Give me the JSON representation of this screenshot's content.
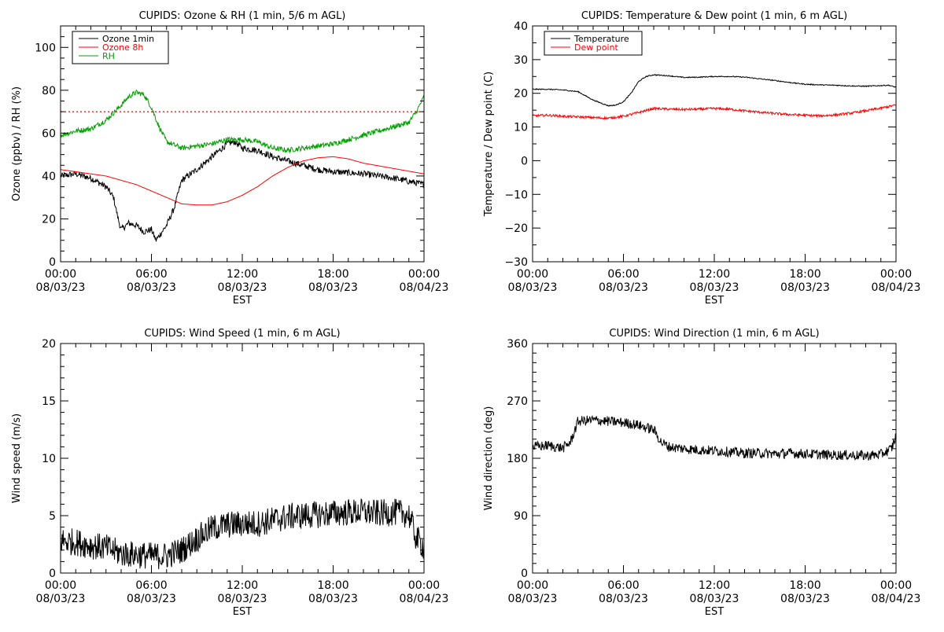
{
  "chart_data": [
    {
      "id": "ozone-rh",
      "type": "line",
      "title": "CUPIDS: Ozone & RH (1 min, 5/6 m AGL)",
      "xlabel": "EST",
      "ylabel": "Ozone (ppbv) / RH (%)",
      "xlim": [
        0,
        24
      ],
      "ylim": [
        0,
        110
      ],
      "x_ticks": [
        {
          "x": 0,
          "time": "00:00",
          "date": "08/03/23"
        },
        {
          "x": 6,
          "time": "06:00",
          "date": "08/03/23"
        },
        {
          "x": 12,
          "time": "12:00",
          "date": "08/03/23"
        },
        {
          "x": 18,
          "time": "18:00",
          "date": "08/03/23"
        },
        {
          "x": 24,
          "time": "00:00",
          "date": "08/04/23"
        }
      ],
      "y_ticks": [
        {
          "v": 0,
          "label": "0"
        },
        {
          "v": 20,
          "label": "20"
        },
        {
          "v": 40,
          "label": "40"
        },
        {
          "v": 60,
          "label": "60"
        },
        {
          "v": 80,
          "label": "80"
        },
        {
          "v": 100,
          "label": "100"
        }
      ],
      "y_minor": 5,
      "legend": "top-left",
      "reference_line": {
        "y": 70,
        "color": "#ff0000",
        "style": "dotted"
      },
      "series": [
        {
          "name": "Ozone 1min",
          "color": "#000000",
          "noise": 1.5,
          "x": [
            0,
            1,
            2,
            3,
            3.5,
            3.8,
            4,
            4.5,
            5,
            5.5,
            6,
            6.3,
            6.5,
            7,
            7.5,
            8,
            9,
            10,
            11,
            11.5,
            12,
            13,
            14,
            15,
            16,
            17,
            18,
            20,
            22,
            24
          ],
          "y": [
            40,
            41,
            39,
            35,
            30,
            20,
            15,
            18,
            17,
            14,
            15,
            10,
            12,
            17,
            25,
            38,
            43,
            49,
            55,
            56,
            53,
            52,
            49,
            47,
            45,
            43,
            42,
            41,
            39,
            36
          ]
        },
        {
          "name": "Ozone 8h",
          "color": "#ff0000",
          "noise": 0,
          "x": [
            0,
            2,
            3,
            4,
            5,
            6,
            7,
            8,
            9,
            10,
            11,
            12,
            13,
            14,
            15,
            16,
            17,
            18,
            19,
            20,
            22,
            24
          ],
          "y": [
            43,
            41,
            40,
            38,
            36,
            33,
            30,
            27,
            26.5,
            26.5,
            28,
            31,
            35,
            40,
            44,
            47,
            48.5,
            49,
            48,
            46,
            43.5,
            41
          ]
        },
        {
          "name": "RH",
          "color": "#00a000",
          "noise": 1.2,
          "x": [
            0,
            1,
            2,
            3,
            4,
            4.5,
            5,
            5.5,
            6,
            6.5,
            7,
            8,
            9,
            10,
            11,
            12,
            13,
            14,
            15,
            16,
            17,
            18,
            19,
            20,
            21,
            22,
            23,
            23.5,
            24
          ],
          "y": [
            59,
            61,
            62,
            66,
            73,
            77,
            79,
            78,
            72,
            63,
            56,
            53,
            54,
            55,
            57,
            57,
            56,
            53,
            52,
            53,
            54,
            55,
            57,
            59,
            61,
            63,
            65,
            70,
            77
          ]
        }
      ]
    },
    {
      "id": "temp-dew",
      "type": "line",
      "title": "CUPIDS: Temperature & Dew point (1 min, 6 m AGL)",
      "xlabel": "EST",
      "ylabel": "Temperature / Dew point (C)",
      "xlim": [
        0,
        24
      ],
      "ylim": [
        -30,
        40
      ],
      "x_ticks": [
        {
          "x": 0,
          "time": "00:00",
          "date": "08/03/23"
        },
        {
          "x": 6,
          "time": "06:00",
          "date": "08/03/23"
        },
        {
          "x": 12,
          "time": "12:00",
          "date": "08/03/23"
        },
        {
          "x": 18,
          "time": "18:00",
          "date": "08/03/23"
        },
        {
          "x": 24,
          "time": "00:00",
          "date": "08/04/23"
        }
      ],
      "y_ticks": [
        {
          "v": -30,
          "label": "−30"
        },
        {
          "v": -20,
          "label": "−20"
        },
        {
          "v": -10,
          "label": "−10"
        },
        {
          "v": 0,
          "label": "0"
        },
        {
          "v": 10,
          "label": "10"
        },
        {
          "v": 20,
          "label": "20"
        },
        {
          "v": 30,
          "label": "30"
        },
        {
          "v": 40,
          "label": "40"
        }
      ],
      "y_minor": 5,
      "legend": "top-left",
      "series": [
        {
          "name": "Temperature",
          "color": "#000000",
          "noise": 0.15,
          "x": [
            0,
            1,
            2,
            3,
            4,
            5,
            5.5,
            6,
            6.5,
            7,
            7.5,
            8,
            9,
            10,
            11,
            12,
            13,
            14,
            15,
            16,
            17,
            18,
            19,
            20,
            21,
            22,
            23,
            23.5,
            24
          ],
          "y": [
            21.2,
            21.2,
            21,
            20.5,
            18,
            16.3,
            16.5,
            17.5,
            20,
            23.5,
            25,
            25.5,
            25.2,
            24.7,
            24.8,
            25,
            25,
            24.8,
            24.3,
            23.8,
            23.2,
            22.7,
            22.5,
            22.4,
            22.2,
            22.1,
            22.3,
            22.4,
            21.8
          ]
        },
        {
          "name": "Dew point",
          "color": "#ff0000",
          "noise": 0.35,
          "x": [
            0,
            1,
            2,
            3,
            4,
            5,
            6,
            7,
            8,
            9,
            10,
            11,
            12,
            13,
            14,
            15,
            16,
            17,
            18,
            19,
            20,
            21,
            22,
            23,
            24
          ],
          "y": [
            13.3,
            13.5,
            13.2,
            13,
            12.8,
            12.6,
            13.2,
            14.3,
            15.5,
            15.3,
            15.2,
            15.3,
            15.5,
            15.3,
            14.8,
            14.4,
            14,
            13.7,
            13.5,
            13.3,
            13.6,
            14.1,
            14.8,
            15.6,
            16.5
          ]
        }
      ]
    },
    {
      "id": "wind-speed",
      "type": "line",
      "title": "CUPIDS: Wind Speed (1 min, 6 m AGL)",
      "xlabel": "EST",
      "ylabel": "Wind speed (m/s)",
      "xlim": [
        0,
        24
      ],
      "ylim": [
        0,
        20
      ],
      "x_ticks": [
        {
          "x": 0,
          "time": "00:00",
          "date": "08/03/23"
        },
        {
          "x": 6,
          "time": "06:00",
          "date": "08/03/23"
        },
        {
          "x": 12,
          "time": "12:00",
          "date": "08/03/23"
        },
        {
          "x": 18,
          "time": "18:00",
          "date": "08/03/23"
        },
        {
          "x": 24,
          "time": "00:00",
          "date": "08/04/23"
        }
      ],
      "y_ticks": [
        {
          "v": 0,
          "label": "0"
        },
        {
          "v": 5,
          "label": "5"
        },
        {
          "v": 10,
          "label": "10"
        },
        {
          "v": 15,
          "label": "15"
        },
        {
          "v": 20,
          "label": "20"
        }
      ],
      "y_minor": 1,
      "legend": "none",
      "series": [
        {
          "name": "",
          "color": "#000000",
          "noise": 1.2,
          "x": [
            0,
            1,
            2,
            3,
            4,
            5,
            6,
            7,
            8,
            9,
            10,
            11,
            12,
            13,
            14,
            15,
            16,
            17,
            18,
            19,
            20,
            21,
            22,
            23,
            23.5,
            24
          ],
          "y": [
            2.8,
            2.7,
            2.4,
            2.2,
            1.7,
            1.6,
            1.5,
            1.5,
            2,
            3,
            3.9,
            4.2,
            4.3,
            4.3,
            4.6,
            4.9,
            5,
            5.1,
            5.2,
            5.3,
            5.3,
            5.2,
            5.3,
            5.1,
            3,
            2.3
          ]
        }
      ]
    },
    {
      "id": "wind-direction",
      "type": "line",
      "title": "CUPIDS: Wind Direction (1 min, 6 m AGL)",
      "xlabel": "EST",
      "ylabel": "Wind direction (deg)",
      "xlim": [
        0,
        24
      ],
      "ylim": [
        0,
        360
      ],
      "x_ticks": [
        {
          "x": 0,
          "time": "00:00",
          "date": "08/03/23"
        },
        {
          "x": 6,
          "time": "06:00",
          "date": "08/03/23"
        },
        {
          "x": 12,
          "time": "12:00",
          "date": "08/03/23"
        },
        {
          "x": 18,
          "time": "18:00",
          "date": "08/03/23"
        },
        {
          "x": 24,
          "time": "00:00",
          "date": "08/04/23"
        }
      ],
      "y_ticks": [
        {
          "v": 0,
          "label": "0"
        },
        {
          "v": 90,
          "label": "90"
        },
        {
          "v": 180,
          "label": "180"
        },
        {
          "v": 270,
          "label": "270"
        },
        {
          "v": 360,
          "label": "360"
        }
      ],
      "y_minor": 15,
      "legend": "none",
      "series": [
        {
          "name": "",
          "color": "#000000",
          "noise": 8,
          "x": [
            0,
            1,
            2,
            2.5,
            3,
            4,
            5,
            6,
            7,
            7.5,
            8,
            8.5,
            9,
            10,
            11,
            12,
            13,
            14,
            15,
            16,
            17,
            18,
            19,
            20,
            21,
            22,
            23,
            23.7,
            24
          ],
          "y": [
            198,
            200,
            196,
            205,
            238,
            240,
            238,
            236,
            232,
            228,
            225,
            205,
            198,
            195,
            193,
            192,
            190,
            188,
            188,
            187,
            188,
            187,
            186,
            185,
            185,
            184,
            186,
            195,
            215
          ]
        }
      ]
    }
  ]
}
